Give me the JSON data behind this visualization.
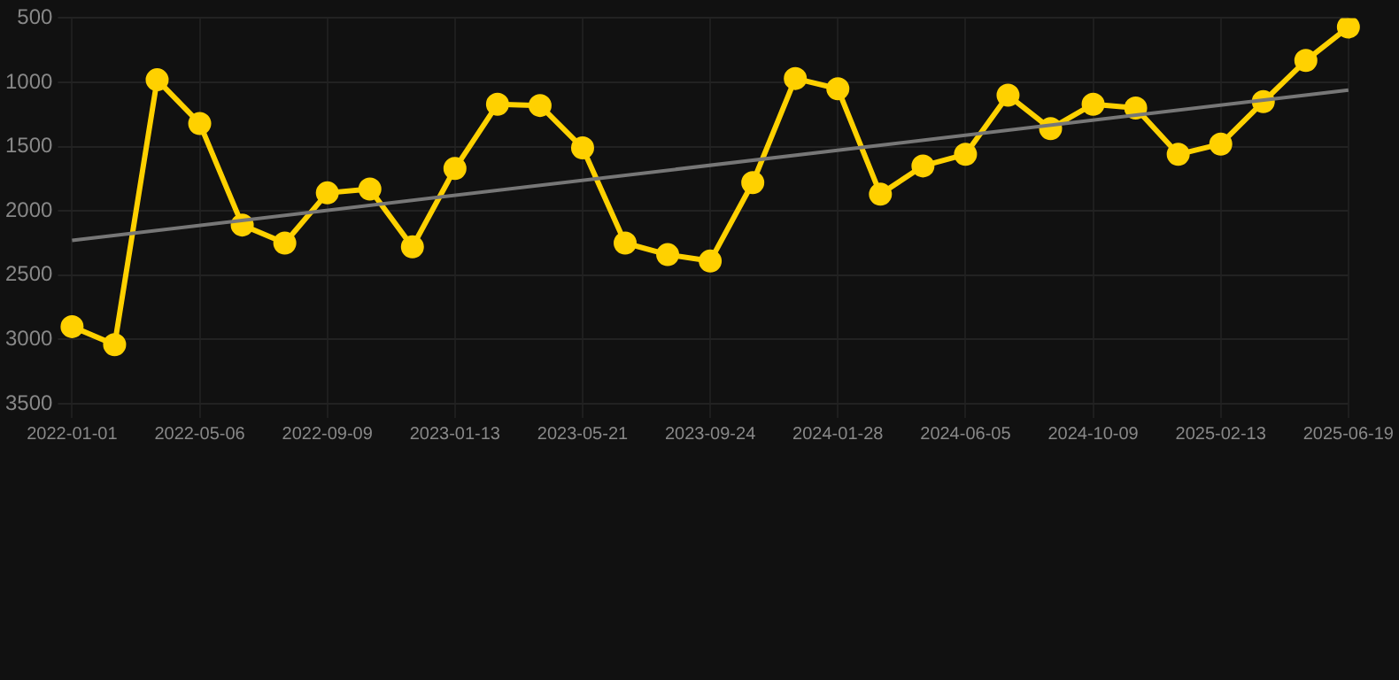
{
  "chart_data": {
    "type": "line",
    "categories": [
      "2022-01-01",
      null,
      null,
      "2022-05-06",
      null,
      null,
      "2022-09-09",
      null,
      null,
      "2023-01-13",
      null,
      null,
      "2023-05-21",
      null,
      null,
      "2023-09-24",
      null,
      null,
      "2024-01-28",
      null,
      null,
      "2024-06-05",
      null,
      null,
      "2024-10-09",
      null,
      null,
      "2025-02-13",
      null,
      null,
      "2025-06-19"
    ],
    "series": [
      {
        "color": "#ffd100",
        "marker": "circle",
        "values": [
          2900,
          3040,
          980,
          1320,
          2110,
          2250,
          1860,
          1830,
          2280,
          1670,
          1170,
          1180,
          1510,
          2250,
          2340,
          2390,
          1780,
          970,
          1050,
          1870,
          1650,
          1560,
          1100,
          1360,
          1170,
          1200,
          1560,
          1480,
          1150,
          830,
          570
        ]
      },
      {
        "type": "line",
        "color": "#777777",
        "marker": "none",
        "values": [
          2230,
          null,
          null,
          null,
          null,
          null,
          null,
          null,
          null,
          null,
          null,
          null,
          null,
          null,
          null,
          null,
          null,
          null,
          null,
          null,
          null,
          null,
          null,
          null,
          null,
          null,
          null,
          null,
          null,
          null,
          1060
        ]
      }
    ],
    "ylim": [
      3500,
      500
    ],
    "yticks": [
      500,
      1000,
      1500,
      2000,
      2500,
      3000,
      3500
    ],
    "grid": true,
    "legend": false
  }
}
